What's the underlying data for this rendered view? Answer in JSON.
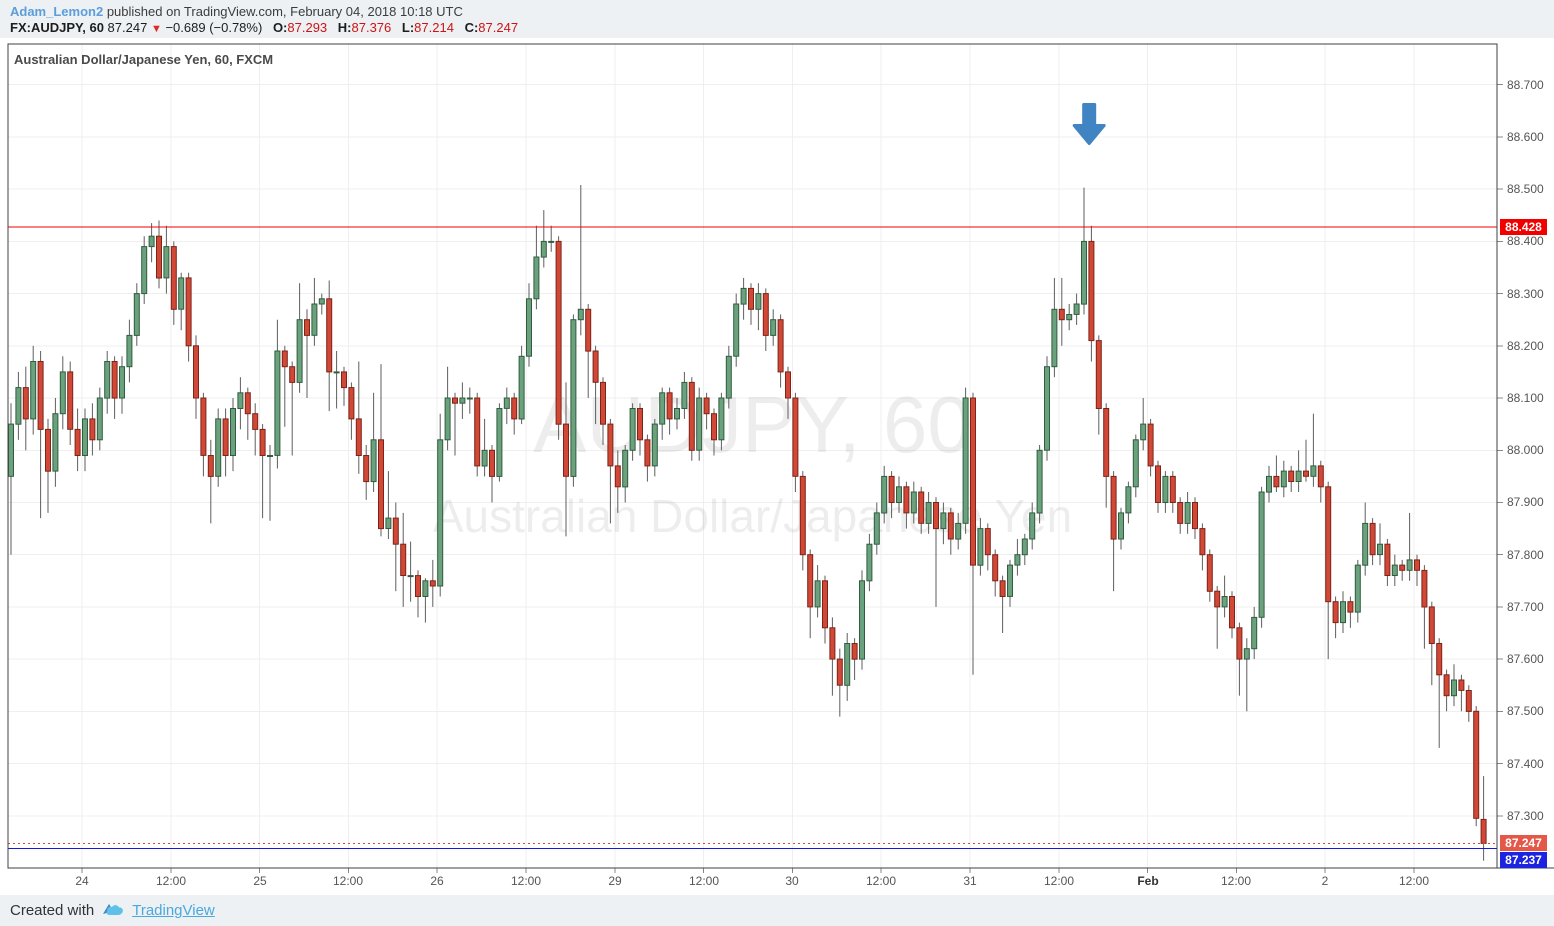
{
  "header": {
    "username": "Adam_Lemon2",
    "published_text": "published on TradingView.com, February 04, 2018 10:18 UTC",
    "symbol_label": "FX:AUDJPY, 60",
    "last_price": "87.247",
    "direction_icon": "▼",
    "change_text": "−0.689 (−0.78%)",
    "ohlc": {
      "o_label": "O:",
      "o_value": "87.293",
      "h_label": "H:",
      "h_value": "87.376",
      "l_label": "L:",
      "l_value": "87.214",
      "c_label": "C:",
      "c_value": "87.247"
    }
  },
  "chart_title": "Australian Dollar/Japanese Yen, 60, FXCM",
  "footer": {
    "created_with": "Created with",
    "brand": "TradingView"
  },
  "chart_data": {
    "type": "candlestick",
    "symbol": "AUDJPY",
    "interval": "60",
    "exchange": "FXCM",
    "watermark_line1": "AUDJPY, 60",
    "watermark_line2": "Australian Dollar/Japanese Yen",
    "y_axis": {
      "ticks": [
        "88.700",
        "88.600",
        "88.500",
        "88.400",
        "88.300",
        "88.200",
        "88.100",
        "88.000",
        "87.900",
        "87.800",
        "87.700",
        "87.600",
        "87.500",
        "87.400",
        "87.300"
      ],
      "price_range_top": 88.778,
      "price_range_bottom": 87.2,
      "grid": true
    },
    "x_axis": {
      "labels": [
        "24",
        "12:00",
        "25",
        "12:00",
        "26",
        "12:00",
        "29",
        "12:00",
        "30",
        "12:00",
        "31",
        "12:00",
        "Feb",
        "12:00",
        "2",
        "12:00"
      ],
      "bold_labels": [
        "Feb"
      ],
      "first_label_candle_index": 9.6,
      "candles_per_label": 12
    },
    "price_lines": [
      {
        "price": 88.428,
        "label": "88.428",
        "line_color": "#f20000",
        "label_bg": "#f20000",
        "style": "solid"
      },
      {
        "price": 87.247,
        "label": "87.247",
        "line_color": "#d6473c",
        "label_bg": "#e4584a",
        "style": "dotted"
      },
      {
        "price": 87.237,
        "label": "87.237",
        "line_color": "#1717dd",
        "label_bg": "#1c24e0",
        "style": "solid"
      }
    ],
    "annotation_arrow": {
      "candle_index": 145.7,
      "price": 88.62,
      "direction": "down",
      "color": "#4184c4"
    },
    "colors": {
      "up_fill": "#6ca17e",
      "up_border": "#2f5d3f",
      "down_fill": "#d14836",
      "down_border": "#7d2419",
      "wick": "#5e5e5e",
      "grid": "#efefef",
      "border": "#424242",
      "watermark": "rgba(0,0,0,0.07)",
      "axis_text": "#555555"
    },
    "candles": [
      [
        87.95,
        88.09,
        87.8,
        88.05
      ],
      [
        88.05,
        88.15,
        88.02,
        88.12
      ],
      [
        88.12,
        88.16,
        88.0,
        88.06
      ],
      [
        88.06,
        88.2,
        88.03,
        88.17
      ],
      [
        88.17,
        88.19,
        87.87,
        88.04
      ],
      [
        88.04,
        88.06,
        87.88,
        87.96
      ],
      [
        87.96,
        88.1,
        87.93,
        88.07
      ],
      [
        88.07,
        88.18,
        88.04,
        88.15
      ],
      [
        88.15,
        88.17,
        88.01,
        88.04
      ],
      [
        88.04,
        88.08,
        87.96,
        87.99
      ],
      [
        87.99,
        88.08,
        87.96,
        88.06
      ],
      [
        88.06,
        88.09,
        87.99,
        88.02
      ],
      [
        88.02,
        88.12,
        88.0,
        88.1
      ],
      [
        88.1,
        88.19,
        88.07,
        88.17
      ],
      [
        88.17,
        88.18,
        88.06,
        88.1
      ],
      [
        88.1,
        88.18,
        88.07,
        88.16
      ],
      [
        88.16,
        88.25,
        88.13,
        88.22
      ],
      [
        88.22,
        88.32,
        88.2,
        88.3
      ],
      [
        88.3,
        88.41,
        88.28,
        88.39
      ],
      [
        88.39,
        88.435,
        88.36,
        88.41
      ],
      [
        88.41,
        88.44,
        88.31,
        88.33
      ],
      [
        88.33,
        88.43,
        88.3,
        88.39
      ],
      [
        88.39,
        88.4,
        88.24,
        88.27
      ],
      [
        88.27,
        88.34,
        88.23,
        88.33
      ],
      [
        88.33,
        88.34,
        88.17,
        88.2
      ],
      [
        88.2,
        88.22,
        88.06,
        88.1
      ],
      [
        88.1,
        88.11,
        87.95,
        87.99
      ],
      [
        87.99,
        88.02,
        87.86,
        87.95
      ],
      [
        87.95,
        88.08,
        87.93,
        88.06
      ],
      [
        88.06,
        88.08,
        87.95,
        87.99
      ],
      [
        87.99,
        88.1,
        87.96,
        88.08
      ],
      [
        88.08,
        88.14,
        88.04,
        88.11
      ],
      [
        88.11,
        88.12,
        88.02,
        88.07
      ],
      [
        88.07,
        88.09,
        87.99,
        88.04
      ],
      [
        88.04,
        88.05,
        87.87,
        87.99
      ],
      [
        87.99,
        88.01,
        87.865,
        87.99
      ],
      [
        87.99,
        88.25,
        87.965,
        88.19
      ],
      [
        88.19,
        88.2,
        88.045,
        88.16
      ],
      [
        88.16,
        88.17,
        87.99,
        88.13
      ],
      [
        88.13,
        88.32,
        88.11,
        88.25
      ],
      [
        88.25,
        88.27,
        88.1,
        88.22
      ],
      [
        88.22,
        88.33,
        88.2,
        88.28
      ],
      [
        88.28,
        88.3,
        88.26,
        88.29
      ],
      [
        88.29,
        88.325,
        88.075,
        88.15
      ],
      [
        88.15,
        88.19,
        88.08,
        88.15
      ],
      [
        88.15,
        88.16,
        88.085,
        88.12
      ],
      [
        88.12,
        88.13,
        88.02,
        88.06
      ],
      [
        88.06,
        88.17,
        87.955,
        87.99
      ],
      [
        87.99,
        88.01,
        87.905,
        87.94
      ],
      [
        87.94,
        88.11,
        87.92,
        88.02
      ],
      [
        88.02,
        88.165,
        87.835,
        87.85
      ],
      [
        87.85,
        87.96,
        87.83,
        87.87
      ],
      [
        87.87,
        87.9,
        87.73,
        87.82
      ],
      [
        87.82,
        87.88,
        87.7,
        87.76
      ],
      [
        87.76,
        87.825,
        87.71,
        87.76
      ],
      [
        87.76,
        87.77,
        87.68,
        87.72
      ],
      [
        87.72,
        87.755,
        87.67,
        87.75
      ],
      [
        87.75,
        87.79,
        87.7,
        87.74
      ],
      [
        87.74,
        88.07,
        87.72,
        88.02
      ],
      [
        88.02,
        88.16,
        88.0,
        88.1
      ],
      [
        88.1,
        88.11,
        87.99,
        88.09
      ],
      [
        88.09,
        88.13,
        88.06,
        88.1
      ],
      [
        88.1,
        88.12,
        88.07,
        88.1
      ],
      [
        88.1,
        88.11,
        87.95,
        87.97
      ],
      [
        87.97,
        88.06,
        87.95,
        88.0
      ],
      [
        88.0,
        88.01,
        87.9,
        87.95
      ],
      [
        87.95,
        88.09,
        87.94,
        88.08
      ],
      [
        88.08,
        88.12,
        88.05,
        88.1
      ],
      [
        88.1,
        88.11,
        88.03,
        88.06
      ],
      [
        88.06,
        88.2,
        88.05,
        88.18
      ],
      [
        88.18,
        88.32,
        88.16,
        88.29
      ],
      [
        88.29,
        88.43,
        88.27,
        88.37
      ],
      [
        88.37,
        88.46,
        88.35,
        88.4
      ],
      [
        88.4,
        88.43,
        88.38,
        88.4
      ],
      [
        88.4,
        88.41,
        88.02,
        88.05
      ],
      [
        88.05,
        88.13,
        87.835,
        87.95
      ],
      [
        87.95,
        88.26,
        87.93,
        88.25
      ],
      [
        88.25,
        88.508,
        88.22,
        88.27
      ],
      [
        88.27,
        88.28,
        88.1,
        88.19
      ],
      [
        88.19,
        88.2,
        88.05,
        88.13
      ],
      [
        88.13,
        88.14,
        88.01,
        88.05
      ],
      [
        88.05,
        88.06,
        87.86,
        87.97
      ],
      [
        87.97,
        88.0,
        87.88,
        87.93
      ],
      [
        87.93,
        88.01,
        87.9,
        88.0
      ],
      [
        88.0,
        88.09,
        87.98,
        88.08
      ],
      [
        88.08,
        88.09,
        87.99,
        88.02
      ],
      [
        88.02,
        88.03,
        87.94,
        87.97
      ],
      [
        87.97,
        88.06,
        87.95,
        88.05
      ],
      [
        88.05,
        88.12,
        88.02,
        88.11
      ],
      [
        88.11,
        88.12,
        88.03,
        88.06
      ],
      [
        88.06,
        88.1,
        88.04,
        88.08
      ],
      [
        88.08,
        88.15,
        88.06,
        88.13
      ],
      [
        88.13,
        88.14,
        87.98,
        88.0
      ],
      [
        88.0,
        88.12,
        87.98,
        88.1
      ],
      [
        88.1,
        88.11,
        88.04,
        88.07
      ],
      [
        88.07,
        88.08,
        87.99,
        88.02
      ],
      [
        88.02,
        88.11,
        88.0,
        88.1
      ],
      [
        88.1,
        88.2,
        88.08,
        88.18
      ],
      [
        88.18,
        88.3,
        88.16,
        88.28
      ],
      [
        88.28,
        88.33,
        88.25,
        88.31
      ],
      [
        88.31,
        88.32,
        88.24,
        88.27
      ],
      [
        88.27,
        88.32,
        88.23,
        88.3
      ],
      [
        88.3,
        88.31,
        88.19,
        88.22
      ],
      [
        88.22,
        88.27,
        88.2,
        88.25
      ],
      [
        88.25,
        88.26,
        88.12,
        88.15
      ],
      [
        88.15,
        88.16,
        88.06,
        88.1
      ],
      [
        88.1,
        88.11,
        87.92,
        87.95
      ],
      [
        87.95,
        87.96,
        87.77,
        87.8
      ],
      [
        87.8,
        87.81,
        87.64,
        87.7
      ],
      [
        87.7,
        87.78,
        87.68,
        87.75
      ],
      [
        87.75,
        87.76,
        87.63,
        87.66
      ],
      [
        87.66,
        87.68,
        87.53,
        87.6
      ],
      [
        87.6,
        87.62,
        87.49,
        87.55
      ],
      [
        87.55,
        87.65,
        87.52,
        87.63
      ],
      [
        87.63,
        87.64,
        87.56,
        87.6
      ],
      [
        87.6,
        87.77,
        87.58,
        87.75
      ],
      [
        87.75,
        87.84,
        87.73,
        87.82
      ],
      [
        87.82,
        87.9,
        87.8,
        87.88
      ],
      [
        87.88,
        87.97,
        87.86,
        87.95
      ],
      [
        87.95,
        87.96,
        87.87,
        87.9
      ],
      [
        87.9,
        87.95,
        87.88,
        87.93
      ],
      [
        87.93,
        87.94,
        87.85,
        87.88
      ],
      [
        87.88,
        87.94,
        87.86,
        87.92
      ],
      [
        87.92,
        87.93,
        87.84,
        87.86
      ],
      [
        87.86,
        87.92,
        87.84,
        87.9
      ],
      [
        87.9,
        87.91,
        87.7,
        87.85
      ],
      [
        87.85,
        87.9,
        87.82,
        87.88
      ],
      [
        87.88,
        87.89,
        87.8,
        87.83
      ],
      [
        87.83,
        87.88,
        87.81,
        87.86
      ],
      [
        87.86,
        88.12,
        87.84,
        88.1
      ],
      [
        88.1,
        88.11,
        87.57,
        87.78
      ],
      [
        87.78,
        87.87,
        87.76,
        87.85
      ],
      [
        87.85,
        87.86,
        87.77,
        87.8
      ],
      [
        87.8,
        87.81,
        87.72,
        87.75
      ],
      [
        87.75,
        87.76,
        87.65,
        87.72
      ],
      [
        87.72,
        87.79,
        87.7,
        87.78
      ],
      [
        87.78,
        87.83,
        87.76,
        87.8
      ],
      [
        87.8,
        87.84,
        87.78,
        87.83
      ],
      [
        87.83,
        87.9,
        87.81,
        87.88
      ],
      [
        87.88,
        88.01,
        87.86,
        88.0
      ],
      [
        88.0,
        88.18,
        87.98,
        88.16
      ],
      [
        88.16,
        88.33,
        88.14,
        88.27
      ],
      [
        88.27,
        88.33,
        88.2,
        88.25
      ],
      [
        88.25,
        88.28,
        88.23,
        88.26
      ],
      [
        88.26,
        88.3,
        88.24,
        88.28
      ],
      [
        88.28,
        88.503,
        88.26,
        88.4
      ],
      [
        88.4,
        88.43,
        88.17,
        88.21
      ],
      [
        88.21,
        88.22,
        88.03,
        88.08
      ],
      [
        88.08,
        88.09,
        87.89,
        87.95
      ],
      [
        87.95,
        87.96,
        87.73,
        87.83
      ],
      [
        87.83,
        87.89,
        87.81,
        87.88
      ],
      [
        87.88,
        87.94,
        87.86,
        87.93
      ],
      [
        87.93,
        88.03,
        87.91,
        88.02
      ],
      [
        88.02,
        88.1,
        88.0,
        88.05
      ],
      [
        88.05,
        88.06,
        87.95,
        87.97
      ],
      [
        87.97,
        87.98,
        87.88,
        87.9
      ],
      [
        87.9,
        87.96,
        87.88,
        87.95
      ],
      [
        87.95,
        87.96,
        87.88,
        87.9
      ],
      [
        87.9,
        87.91,
        87.84,
        87.86
      ],
      [
        87.86,
        87.92,
        87.84,
        87.9
      ],
      [
        87.9,
        87.91,
        87.83,
        87.85
      ],
      [
        87.85,
        87.86,
        87.77,
        87.8
      ],
      [
        87.8,
        87.81,
        87.71,
        87.73
      ],
      [
        87.73,
        87.74,
        87.62,
        87.7
      ],
      [
        87.7,
        87.76,
        87.68,
        87.72
      ],
      [
        87.72,
        87.73,
        87.64,
        87.66
      ],
      [
        87.66,
        87.67,
        87.53,
        87.6
      ],
      [
        87.6,
        87.64,
        87.5,
        87.62
      ],
      [
        87.62,
        87.7,
        87.6,
        87.68
      ],
      [
        87.68,
        87.93,
        87.66,
        87.92
      ],
      [
        87.92,
        87.97,
        87.9,
        87.95
      ],
      [
        87.95,
        87.99,
        87.92,
        87.93
      ],
      [
        87.93,
        87.98,
        87.91,
        87.96
      ],
      [
        87.96,
        87.97,
        87.92,
        87.94
      ],
      [
        87.94,
        88.0,
        87.92,
        87.96
      ],
      [
        87.96,
        88.02,
        87.94,
        87.95
      ],
      [
        87.95,
        88.07,
        87.93,
        87.97
      ],
      [
        87.97,
        87.98,
        87.9,
        87.93
      ],
      [
        87.93,
        87.94,
        87.6,
        87.71
      ],
      [
        87.71,
        87.72,
        87.64,
        87.67
      ],
      [
        87.67,
        87.73,
        87.65,
        87.71
      ],
      [
        87.71,
        87.72,
        87.66,
        87.69
      ],
      [
        87.69,
        87.79,
        87.67,
        87.78
      ],
      [
        87.78,
        87.9,
        87.76,
        87.86
      ],
      [
        87.86,
        87.87,
        87.78,
        87.8
      ],
      [
        87.8,
        87.86,
        87.78,
        87.82
      ],
      [
        87.82,
        87.83,
        87.74,
        87.76
      ],
      [
        87.76,
        87.8,
        87.74,
        87.78
      ],
      [
        87.78,
        87.79,
        87.75,
        87.77
      ],
      [
        87.77,
        87.88,
        87.75,
        87.79
      ],
      [
        87.79,
        87.8,
        87.74,
        87.77
      ],
      [
        87.77,
        87.78,
        87.62,
        87.7
      ],
      [
        87.7,
        87.71,
        87.55,
        87.63
      ],
      [
        87.63,
        87.64,
        87.43,
        87.57
      ],
      [
        87.57,
        87.58,
        87.5,
        87.53
      ],
      [
        87.53,
        87.59,
        87.51,
        87.56
      ],
      [
        87.56,
        87.57,
        87.5,
        87.54
      ],
      [
        87.54,
        87.55,
        87.48,
        87.5
      ],
      [
        87.5,
        87.51,
        87.28,
        87.295
      ],
      [
        87.293,
        87.376,
        87.214,
        87.247
      ]
    ]
  }
}
